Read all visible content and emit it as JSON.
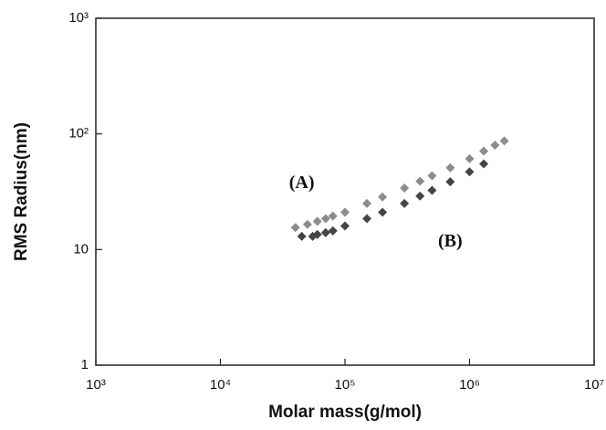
{
  "chart_data": {
    "type": "scatter",
    "x_label": "Molar mass(g/mol)",
    "y_label": "RMS Radius(nm)",
    "log_x": true,
    "log_y": true,
    "xlim": [
      1000,
      10000000
    ],
    "ylim": [
      1,
      1000
    ],
    "xticks": [
      {
        "value": 1000,
        "label": "10³"
      },
      {
        "value": 10000,
        "label": "10⁴"
      },
      {
        "value": 100000,
        "label": "10⁵"
      },
      {
        "value": 1000000,
        "label": "10⁶"
      },
      {
        "value": 10000000,
        "label": "10⁷"
      }
    ],
    "yticks": [
      1,
      10,
      {
        "value": 100,
        "label": "10²"
      },
      {
        "value": 1000,
        "label": "10³"
      }
    ],
    "annotations": [
      {
        "text": "(A)",
        "x": 45000,
        "y": 37
      },
      {
        "text": "(B)",
        "x": 700000,
        "y": 11.5
      }
    ],
    "series": [
      {
        "name": "(A)",
        "color": "#8c8c8c",
        "x": [
          40000,
          50000,
          60000,
          70000,
          80000,
          100000,
          150000,
          200000,
          300000,
          400000,
          500000,
          700000,
          1000000,
          1300000,
          1600000,
          1900000
        ],
        "values": [
          15.5,
          16.5,
          17.5,
          18.5,
          19.5,
          21,
          25,
          28.5,
          34,
          39,
          43.5,
          51,
          61,
          71,
          80,
          87
        ]
      },
      {
        "name": "(B)",
        "color": "#454545",
        "x": [
          45000,
          55000,
          60000,
          70000,
          80000,
          100000,
          150000,
          200000,
          300000,
          400000,
          500000,
          700000,
          1000000,
          1300000
        ],
        "values": [
          13,
          13,
          13.5,
          14,
          14.5,
          16,
          18.5,
          21,
          25,
          29,
          32.5,
          38.5,
          47,
          55
        ]
      }
    ]
  }
}
